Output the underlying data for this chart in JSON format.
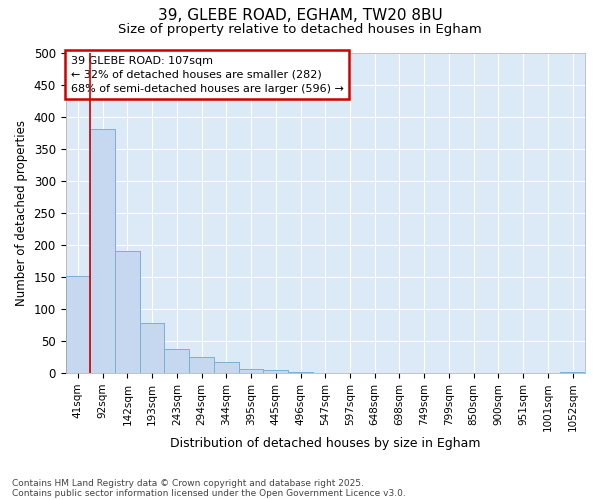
{
  "title_line1": "39, GLEBE ROAD, EGHAM, TW20 8BU",
  "title_line2": "Size of property relative to detached houses in Egham",
  "xlabel": "Distribution of detached houses by size in Egham",
  "ylabel": "Number of detached properties",
  "categories": [
    "41sqm",
    "92sqm",
    "142sqm",
    "193sqm",
    "243sqm",
    "294sqm",
    "344sqm",
    "395sqm",
    "445sqm",
    "496sqm",
    "547sqm",
    "597sqm",
    "648sqm",
    "698sqm",
    "749sqm",
    "799sqm",
    "850sqm",
    "900sqm",
    "951sqm",
    "1001sqm",
    "1052sqm"
  ],
  "values": [
    152,
    380,
    190,
    78,
    38,
    25,
    17,
    7,
    5,
    2,
    0,
    0,
    0,
    0,
    0,
    0,
    0,
    0,
    0,
    0,
    2
  ],
  "bar_color": "#c5d8f0",
  "bar_edge_color": "#7bafd4",
  "red_line_x": 0.5,
  "ylim": [
    0,
    500
  ],
  "yticks": [
    0,
    50,
    100,
    150,
    200,
    250,
    300,
    350,
    400,
    450,
    500
  ],
  "annotation_text": "39 GLEBE ROAD: 107sqm\n← 32% of detached houses are smaller (282)\n68% of semi-detached houses are larger (596) →",
  "annotation_box_facecolor": "#ffffff",
  "annotation_box_edge": "#cc0000",
  "footnote_line1": "Contains HM Land Registry data © Crown copyright and database right 2025.",
  "footnote_line2": "Contains public sector information licensed under the Open Government Licence v3.0.",
  "fig_bg_color": "#ffffff",
  "plot_bg_color": "#dce9f7",
  "grid_color": "#ffffff",
  "title_fontsize": 11,
  "subtitle_fontsize": 9.5
}
